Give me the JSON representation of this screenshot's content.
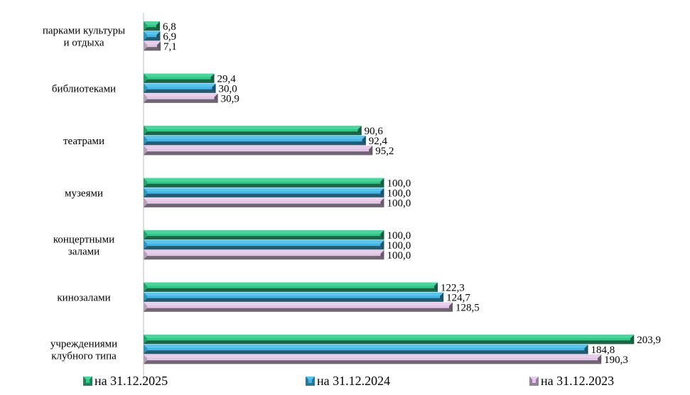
{
  "chart_data": {
    "type": "bar",
    "orientation": "horizontal",
    "categories": [
      [
        "парками культуры",
        "и отдыха"
      ],
      [
        "библиотеками"
      ],
      [
        "театрами"
      ],
      [
        "музеями"
      ],
      [
        "концертными",
        "залами"
      ],
      [
        "кинозалами"
      ],
      [
        "учреждениями",
        "клубного типа"
      ]
    ],
    "series": [
      {
        "name": "на 31.12.2025",
        "color": "#2ecc8a",
        "labels": [
          "6,8",
          "29,4",
          "90,6",
          "100,0",
          "100,0",
          "122,3",
          "203,9"
        ],
        "values": [
          6.8,
          29.4,
          90.6,
          100.0,
          100.0,
          122.3,
          203.9
        ]
      },
      {
        "name": "на 31.12.2024",
        "color": "#3fb8ea",
        "labels": [
          "6,9",
          "30,0",
          "92,4",
          "100,0",
          "100,0",
          "124,7",
          "184,8"
        ],
        "values": [
          6.9,
          30.0,
          92.4,
          100.0,
          100.0,
          124.7,
          184.8
        ]
      },
      {
        "name": "на 31.12.2023",
        "color": "#e4c8ea",
        "labels": [
          "7,1",
          "30,9",
          "95,2",
          "100,0",
          "100,0",
          "128,5",
          "190,3"
        ],
        "values": [
          7.1,
          30.9,
          95.2,
          100.0,
          100.0,
          128.5,
          190.3
        ]
      }
    ],
    "legend_position": "bottom",
    "grid": false
  }
}
